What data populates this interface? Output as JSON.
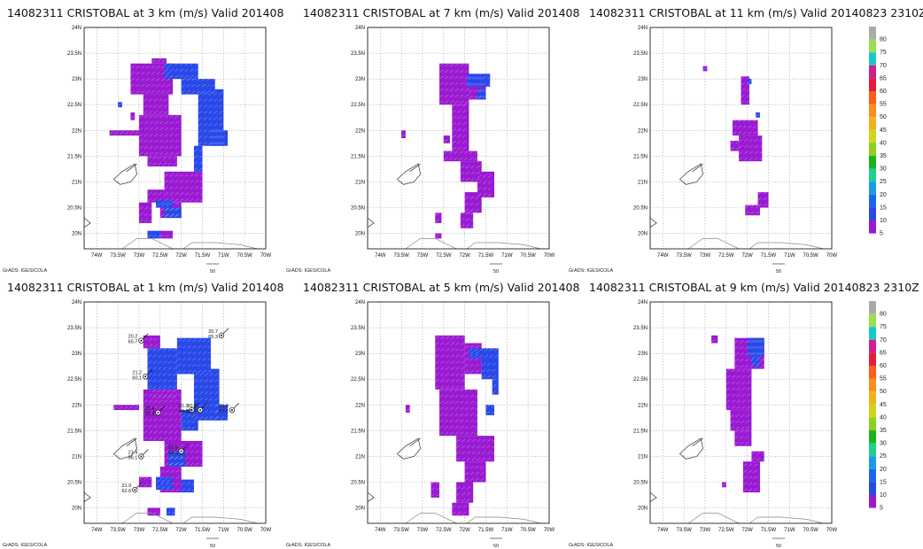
{
  "grads_credit": "GrADS: IGES/COLA",
  "reference_vector": "50",
  "x_ticks": [
    "74W",
    "73.5W",
    "73W",
    "72.5W",
    "72W",
    "71.5W",
    "71W",
    "70.5W",
    "70W"
  ],
  "y_ticks": [
    "24N",
    "23.5N",
    "23N",
    "22.5N",
    "22N",
    "21.5N",
    "21N",
    "20.5N",
    "20N"
  ],
  "colorbar": {
    "labels": [
      "80",
      "75",
      "70",
      "65",
      "60",
      "55",
      "50",
      "45",
      "40",
      "35",
      "30",
      "25",
      "20",
      "15",
      "10",
      "5"
    ],
    "colors": [
      "#aaaaaa",
      "#9adf52",
      "#19c9c9",
      "#d21e8c",
      "#e81a3a",
      "#ff5a1a",
      "#ff8c1a",
      "#f2b11a",
      "#cfd61a",
      "#8cd11a",
      "#1ab41a",
      "#1ad28c",
      "#1a9be6",
      "#1a64f0",
      "#2848e8",
      "#9a1ad2"
    ]
  },
  "chart_data": [
    {
      "type": "heatmap",
      "title": "14082311 CRISTOBAL at 3 km (m/s) Valid 201408",
      "xlim": [
        -74.3,
        -70
      ],
      "ylim": [
        19.7,
        24
      ],
      "colorbar": false,
      "stations": [],
      "regions": [
        {
          "level": "5",
          "cells": [
            [
              -72.7,
              23.3,
              -72.35,
              23.4
            ],
            [
              -73.2,
              22.7,
              -72.2,
              23.3
            ],
            [
              -72.9,
              22.3,
              -72.3,
              22.7
            ],
            [
              -73.0,
              21.5,
              -72.0,
              22.3
            ],
            [
              -73.7,
              21.9,
              -73.0,
              22.0
            ],
            [
              -72.8,
              21.3,
              -72.1,
              21.5
            ],
            [
              -72.4,
              20.6,
              -71.5,
              21.2
            ],
            [
              -72.8,
              20.6,
              -72.4,
              20.85
            ],
            [
              -72.5,
              20.3,
              -72.0,
              20.6
            ],
            [
              -73.0,
              20.2,
              -72.7,
              20.6
            ],
            [
              -72.5,
              19.9,
              -72.2,
              20.05
            ],
            [
              -73.2,
              22.2,
              -73.1,
              22.35
            ]
          ]
        },
        {
          "level": "10",
          "cells": [
            [
              -72.4,
              23.0,
              -71.6,
              23.3
            ],
            [
              -72.0,
              22.7,
              -71.2,
              23.0
            ],
            [
              -71.6,
              21.7,
              -71.0,
              22.8
            ],
            [
              -71.3,
              21.7,
              -70.9,
              22.0
            ],
            [
              -71.7,
              21.2,
              -71.5,
              21.7
            ],
            [
              -72.6,
              20.5,
              -72.2,
              20.65
            ],
            [
              -72.4,
              20.3,
              -72.0,
              20.5
            ],
            [
              -72.8,
              19.9,
              -72.5,
              20.05
            ],
            [
              -73.5,
              22.45,
              -73.4,
              22.55
            ]
          ]
        }
      ]
    },
    {
      "type": "heatmap",
      "title": "14082311 CRISTOBAL at 7 km (m/s) Valid 201408",
      "xlim": [
        -74.3,
        -70
      ],
      "ylim": [
        19.7,
        24
      ],
      "colorbar": false,
      "stations": [],
      "regions": [
        {
          "level": "5",
          "cells": [
            [
              -72.6,
              22.5,
              -71.9,
              23.3
            ],
            [
              -71.9,
              22.6,
              -71.5,
              23.05
            ],
            [
              -72.3,
              21.6,
              -71.9,
              22.5
            ],
            [
              -72.5,
              21.4,
              -71.7,
              21.6
            ],
            [
              -72.1,
              21.0,
              -71.6,
              21.4
            ],
            [
              -71.7,
              20.7,
              -71.3,
              21.2
            ],
            [
              -72.0,
              20.4,
              -71.6,
              20.8
            ],
            [
              -72.1,
              20.1,
              -71.8,
              20.4
            ],
            [
              -72.5,
              21.75,
              -72.35,
              21.9
            ],
            [
              -72.7,
              20.2,
              -72.55,
              20.4
            ],
            [
              -73.5,
              21.85,
              -73.4,
              22.0
            ],
            [
              -72.7,
              19.9,
              -72.55,
              20.0
            ]
          ]
        },
        {
          "level": "10",
          "cells": [
            [
              -71.95,
              22.85,
              -71.4,
              23.1
            ],
            [
              -71.7,
              22.6,
              -71.5,
              22.8
            ]
          ]
        }
      ]
    },
    {
      "type": "heatmap",
      "title": "14082311 CRISTOBAL at 11 km (m/s) Valid 20140823 2310Z",
      "xlim": [
        -74.3,
        -70
      ],
      "ylim": [
        19.7,
        24
      ],
      "colorbar": true,
      "stations": [],
      "regions": [
        {
          "level": "5",
          "cells": [
            [
              -73.05,
              23.15,
              -72.95,
              23.25
            ],
            [
              -72.15,
              22.5,
              -71.95,
              23.05
            ],
            [
              -72.35,
              21.9,
              -71.75,
              22.2
            ],
            [
              -72.2,
              21.4,
              -71.65,
              21.9
            ],
            [
              -72.4,
              21.6,
              -72.2,
              21.8
            ],
            [
              -71.75,
              20.5,
              -71.5,
              20.8
            ],
            [
              -72.05,
              20.35,
              -71.7,
              20.55
            ]
          ]
        },
        {
          "level": "10",
          "cells": [
            [
              -72.0,
              22.9,
              -71.9,
              23.0
            ],
            [
              -71.8,
              22.25,
              -71.7,
              22.35
            ]
          ]
        }
      ]
    },
    {
      "type": "heatmap",
      "title": "14082311 CRISTOBAL at 1 km (m/s) Valid 201408",
      "xlim": [
        -74.3,
        -70
      ],
      "ylim": [
        19.7,
        24
      ],
      "colorbar": false,
      "regions": [
        {
          "level": "5",
          "cells": [
            [
              -72.9,
              23.1,
              -72.5,
              23.35
            ],
            [
              -72.9,
              21.3,
              -72.0,
              22.3
            ],
            [
              -72.4,
              20.8,
              -71.5,
              21.3
            ],
            [
              -72.5,
              20.3,
              -72.0,
              20.8
            ],
            [
              -73.0,
              20.4,
              -72.7,
              20.6
            ],
            [
              -73.6,
              21.9,
              -73.0,
              22.0
            ],
            [
              -72.8,
              19.85,
              -72.5,
              20.0
            ],
            [
              -72.7,
              22.1,
              -72.1,
              22.3
            ]
          ]
        },
        {
          "level": "10",
          "cells": [
            [
              -72.8,
              22.3,
              -72.1,
              23.1
            ],
            [
              -72.1,
              22.6,
              -71.3,
              23.3
            ],
            [
              -71.7,
              21.7,
              -71.1,
              22.7
            ],
            [
              -71.2,
              21.7,
              -70.9,
              22.0
            ],
            [
              -72.0,
              21.5,
              -71.6,
              21.9
            ],
            [
              -72.3,
              20.8,
              -71.9,
              21.1
            ],
            [
              -72.6,
              20.35,
              -72.2,
              20.6
            ],
            [
              -72.0,
              20.3,
              -71.7,
              20.55
            ],
            [
              -72.35,
              19.85,
              -72.15,
              20.0
            ]
          ]
        }
      ],
      "stations": [
        {
          "lon": -72.95,
          "lat": 23.25,
          "labels": [
            "20.2",
            "65.7"
          ]
        },
        {
          "lon": -71.05,
          "lat": 23.35,
          "labels": [
            "20.7",
            "65.3"
          ]
        },
        {
          "lon": -72.85,
          "lat": 22.55,
          "labels": [
            "21.2",
            "60.1"
          ]
        },
        {
          "lon": -72.55,
          "lat": 21.85,
          "labels": [
            "23.4",
            "55.3"
          ]
        },
        {
          "lon": -71.75,
          "lat": 21.9,
          "labels": [
            "21.3",
            "44.6"
          ]
        },
        {
          "lon": -71.55,
          "lat": 21.9,
          "labels": [
            "20.8",
            "65.4"
          ]
        },
        {
          "lon": -70.8,
          "lat": 21.9,
          "labels": [
            "20.9",
            "62.1"
          ]
        },
        {
          "lon": -72.0,
          "lat": 21.1,
          "labels": [
            "21.8",
            "49.2"
          ]
        },
        {
          "lon": -72.95,
          "lat": 21.0,
          "labels": [
            "21.4",
            "56.1"
          ]
        },
        {
          "lon": -73.1,
          "lat": 20.35,
          "labels": [
            "21.9",
            "62.6"
          ]
        }
      ]
    },
    {
      "type": "heatmap",
      "title": "14082311 CRISTOBAL at 5 km (m/s) Valid 201408",
      "xlim": [
        -74.3,
        -70
      ],
      "ylim": [
        19.7,
        24
      ],
      "colorbar": false,
      "stations": [],
      "regions": [
        {
          "level": "5",
          "cells": [
            [
              -72.7,
              22.3,
              -72.0,
              23.35
            ],
            [
              -72.0,
              22.6,
              -71.6,
              23.2
            ],
            [
              -72.6,
              21.4,
              -71.7,
              22.3
            ],
            [
              -72.2,
              20.9,
              -71.3,
              21.4
            ],
            [
              -72.0,
              20.5,
              -71.5,
              20.9
            ],
            [
              -72.2,
              20.1,
              -71.8,
              20.5
            ],
            [
              -72.3,
              19.85,
              -71.9,
              20.1
            ],
            [
              -72.8,
              20.2,
              -72.6,
              20.5
            ],
            [
              -73.4,
              21.85,
              -73.3,
              22.0
            ]
          ]
        },
        {
          "level": "10",
          "cells": [
            [
              -71.9,
              22.9,
              -71.2,
              23.1
            ],
            [
              -71.6,
              22.5,
              -71.2,
              22.9
            ],
            [
              -71.35,
              22.2,
              -71.2,
              22.5
            ],
            [
              -71.5,
              21.8,
              -71.3,
              22.0
            ]
          ]
        }
      ]
    },
    {
      "type": "heatmap",
      "title": "14082311 CRISTOBAL at 9 km (m/s) Valid 20140823 2310Z",
      "xlim": [
        -74.3,
        -70
      ],
      "ylim": [
        19.7,
        24
      ],
      "colorbar": true,
      "stations": [],
      "regions": [
        {
          "level": "5",
          "cells": [
            [
              -72.85,
              23.2,
              -72.7,
              23.35
            ],
            [
              -72.3,
              22.7,
              -71.6,
              23.3
            ],
            [
              -72.5,
              21.9,
              -71.9,
              22.7
            ],
            [
              -72.4,
              21.5,
              -71.9,
              21.9
            ],
            [
              -72.3,
              21.2,
              -71.9,
              21.5
            ],
            [
              -71.9,
              20.9,
              -71.6,
              21.1
            ],
            [
              -72.1,
              20.3,
              -71.7,
              20.9
            ],
            [
              -72.6,
              20.4,
              -72.5,
              20.5
            ]
          ]
        },
        {
          "level": "10",
          "cells": [
            [
              -72.0,
              22.95,
              -71.6,
              23.3
            ],
            [
              -71.9,
              22.75,
              -71.7,
              22.95
            ]
          ]
        }
      ]
    }
  ]
}
